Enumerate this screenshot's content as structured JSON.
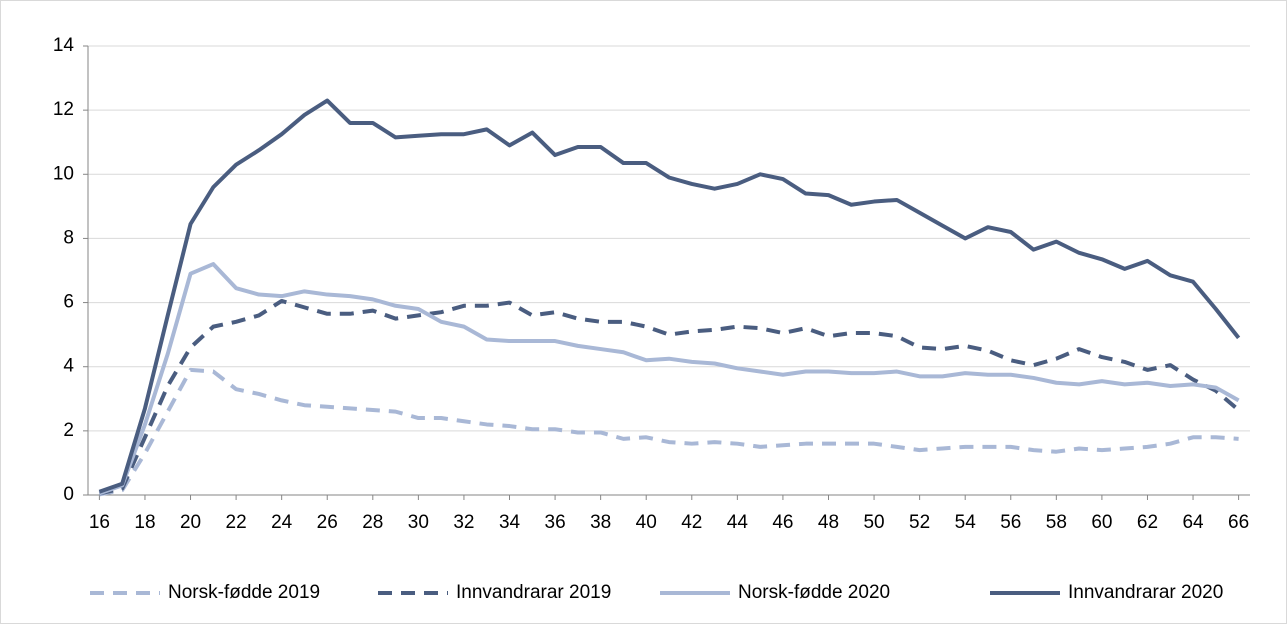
{
  "chart_data": {
    "type": "line",
    "x": [
      16,
      17,
      18,
      19,
      20,
      21,
      22,
      23,
      24,
      25,
      26,
      27,
      28,
      29,
      30,
      31,
      32,
      33,
      34,
      35,
      36,
      37,
      38,
      39,
      40,
      41,
      42,
      43,
      44,
      45,
      46,
      47,
      48,
      49,
      50,
      51,
      52,
      53,
      54,
      55,
      56,
      57,
      58,
      59,
      60,
      61,
      62,
      63,
      64,
      65,
      66
    ],
    "xlim": [
      15.5,
      66.5
    ],
    "xticks": [
      16,
      18,
      20,
      22,
      24,
      26,
      28,
      30,
      32,
      34,
      36,
      38,
      40,
      42,
      44,
      46,
      48,
      50,
      52,
      54,
      56,
      58,
      60,
      62,
      64,
      66
    ],
    "ylim": [
      0,
      14
    ],
    "yticks": [
      0,
      2,
      4,
      6,
      8,
      10,
      12,
      14
    ],
    "grid": true,
    "legend": "bottom",
    "series": [
      {
        "name": "Norsk-fødde 2019",
        "color": "#a9b8d6",
        "dashed": true,
        "values": [
          0.02,
          0.15,
          1.3,
          2.6,
          3.9,
          3.85,
          3.3,
          3.15,
          2.95,
          2.8,
          2.75,
          2.7,
          2.65,
          2.6,
          2.4,
          2.4,
          2.3,
          2.2,
          2.15,
          2.05,
          2.05,
          1.95,
          1.95,
          1.75,
          1.8,
          1.65,
          1.6,
          1.65,
          1.6,
          1.5,
          1.55,
          1.6,
          1.6,
          1.6,
          1.6,
          1.5,
          1.4,
          1.45,
          1.5,
          1.5,
          1.5,
          1.4,
          1.35,
          1.45,
          1.4,
          1.45,
          1.5,
          1.6,
          1.8,
          1.8,
          1.75
        ]
      },
      {
        "name": "Innvandrarar 2019",
        "color": "#4a5d80",
        "dashed": true,
        "values": [
          0.05,
          0.2,
          1.8,
          3.4,
          4.6,
          5.25,
          5.4,
          5.6,
          6.05,
          5.85,
          5.65,
          5.65,
          5.75,
          5.5,
          5.6,
          5.7,
          5.9,
          5.9,
          6.0,
          5.6,
          5.7,
          5.5,
          5.4,
          5.4,
          5.25,
          5.0,
          5.1,
          5.15,
          5.25,
          5.2,
          5.05,
          5.2,
          4.95,
          5.05,
          5.05,
          4.95,
          4.6,
          4.55,
          4.65,
          4.5,
          4.2,
          4.05,
          4.25,
          4.55,
          4.3,
          4.15,
          3.9,
          4.05,
          3.6,
          3.25,
          2.65
        ]
      },
      {
        "name": "Norsk-fødde 2020",
        "color": "#a9b8d6",
        "dashed": false,
        "values": [
          0.05,
          0.3,
          2.2,
          4.4,
          6.9,
          7.2,
          6.45,
          6.25,
          6.2,
          6.35,
          6.25,
          6.2,
          6.1,
          5.9,
          5.8,
          5.4,
          5.25,
          4.85,
          4.8,
          4.8,
          4.8,
          4.65,
          4.55,
          4.45,
          4.2,
          4.25,
          4.15,
          4.1,
          3.95,
          3.85,
          3.75,
          3.85,
          3.85,
          3.8,
          3.8,
          3.85,
          3.7,
          3.7,
          3.8,
          3.75,
          3.75,
          3.65,
          3.5,
          3.45,
          3.55,
          3.45,
          3.5,
          3.4,
          3.45,
          3.35,
          2.95
        ]
      },
      {
        "name": "Innvandrarar 2020",
        "color": "#4a5d80",
        "dashed": false,
        "values": [
          0.1,
          0.35,
          2.7,
          5.6,
          8.45,
          9.6,
          10.3,
          10.75,
          11.25,
          11.85,
          12.3,
          11.6,
          11.6,
          11.15,
          11.2,
          11.25,
          11.25,
          11.4,
          10.9,
          11.3,
          10.6,
          10.85,
          10.85,
          10.35,
          10.35,
          9.9,
          9.7,
          9.55,
          9.7,
          10.0,
          9.85,
          9.4,
          9.35,
          9.05,
          9.15,
          9.2,
          8.8,
          8.4,
          8.0,
          8.35,
          8.2,
          7.65,
          7.9,
          7.55,
          7.35,
          7.05,
          7.3,
          6.85,
          6.65,
          5.8,
          4.9
        ]
      }
    ]
  }
}
